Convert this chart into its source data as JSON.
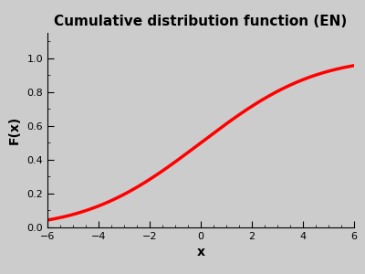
{
  "title": "Cumulative distribution function (EN)",
  "xlabel": "x",
  "ylabel": "F(x)",
  "xlim": [
    -6,
    6
  ],
  "ylim": [
    0,
    1.15
  ],
  "x_ticks": [
    -6,
    -4,
    -2,
    0,
    2,
    4,
    6
  ],
  "y_ticks": [
    0,
    0.2,
    0.4,
    0.6,
    0.8,
    1
  ],
  "line_color": "#ff0000",
  "line_width": 2.5,
  "background_color": "#cccccc",
  "title_fontsize": 11,
  "label_fontsize": 10,
  "tick_labelsize": 8,
  "mean": 0,
  "std": 3.5
}
